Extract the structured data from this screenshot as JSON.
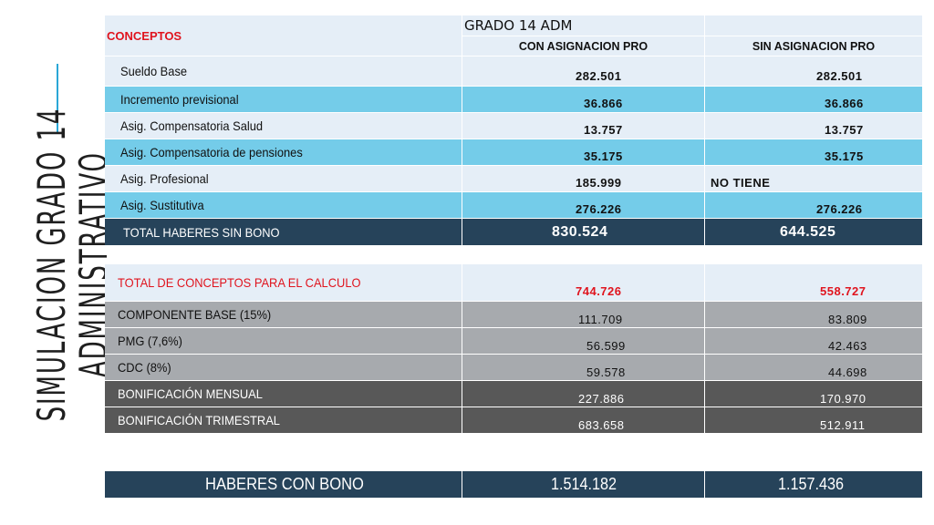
{
  "slide_title": {
    "line1": "SIMULACION GRADO 14",
    "line2": "ADMINISTRATIVO"
  },
  "header": {
    "conceptos": "CONCEPTOS",
    "grado": "GRADO 14 ADM",
    "col_con": "CON ASIGNACION PRO",
    "col_sin": "SIN ASIGNACION PRO"
  },
  "rows": [
    {
      "label": "Sueldo Base",
      "con": "282.501",
      "sin": "282.501"
    },
    {
      "label": "Incremento previsional",
      "con": "36.866",
      "sin": "36.866"
    },
    {
      "label": "Asig. Compensatoria Salud",
      "con": "13.757",
      "sin": "13.757"
    },
    {
      "label": "Asig. Compensatoria de pensiones",
      "con": "35.175",
      "sin": "35.175"
    },
    {
      "label": "Asig. Profesional",
      "con": "185.999",
      "sin": "NO TIENE"
    },
    {
      "label": "Asig. Sustitutiva",
      "con": "276.226",
      "sin": "276.226"
    }
  ],
  "total_sin_bono": {
    "label": "TOTAL HABERES SIN BONO",
    "con": "830.524",
    "sin": "644.525"
  },
  "calculo": {
    "label": "TOTAL DE CONCEPTOS PARA EL CALCULO",
    "con": "744.726",
    "sin": "558.727"
  },
  "bono_rows": [
    {
      "label": "COMPONENTE BASE (15%)",
      "con": "111.709",
      "sin": "83.809"
    },
    {
      "label": "PMG (7,6%)",
      "con": "56.599",
      "sin": "42.463"
    },
    {
      "label": "CDC (8%)",
      "con": "59.578",
      "sin": "44.698"
    },
    {
      "label": "BONIFICACIÓN MENSUAL",
      "con": "227.886",
      "sin": "170.970"
    },
    {
      "label": "BONIFICACIÓN TRIMESTRAL",
      "con": "683.658",
      "sin": "512.911"
    }
  ],
  "haberes_con_bono": {
    "label": "HABERES CON BONO",
    "con": "1.514.182",
    "sin": "1.157.436"
  },
  "colors": {
    "light": "#e5eef7",
    "blue": "#74cce9",
    "navy": "#26435a",
    "light_gray": "#a7aaae",
    "dark_gray": "#585858",
    "red": "#e0141e",
    "accent": "#2aa7d6"
  }
}
